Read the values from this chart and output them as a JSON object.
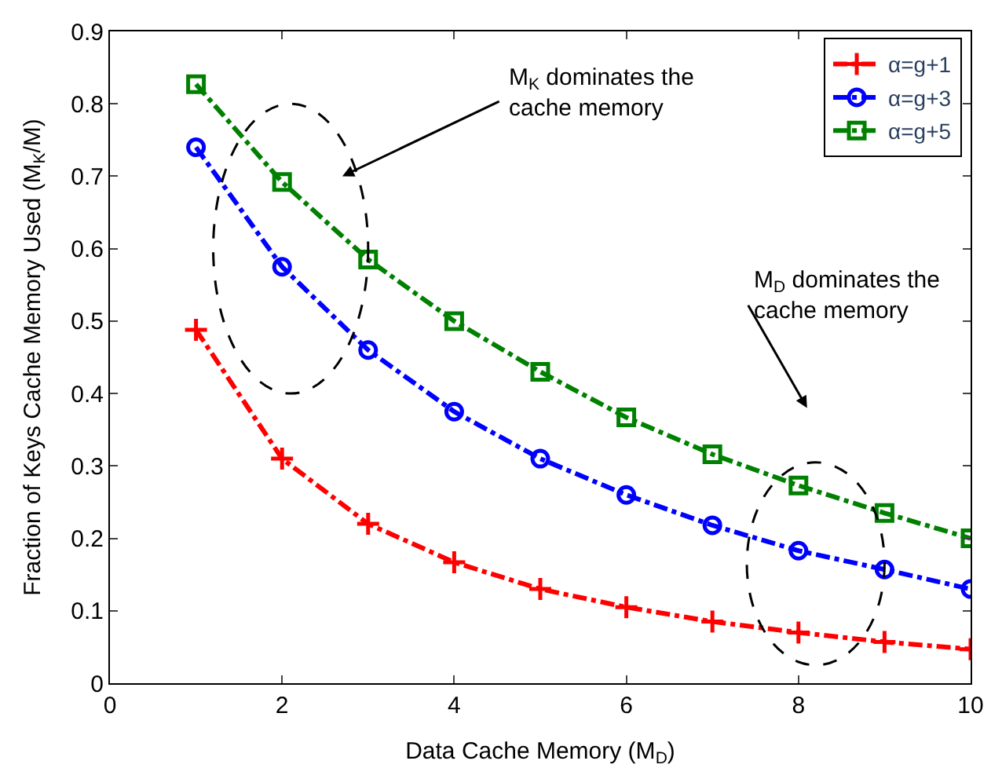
{
  "chart_data": {
    "type": "line",
    "xlabel": "Data Cache Memory (M$_{D}$)",
    "ylabel": "Fraction of Keys Cache Memory Used (M$_{K}$/M)",
    "x": [
      1,
      2,
      3,
      4,
      5,
      6,
      7,
      8,
      9,
      10
    ],
    "series": [
      {
        "name": "α=g+1",
        "color": "#ff0000",
        "marker": "cross",
        "values": [
          0.488,
          0.31,
          0.22,
          0.167,
          0.13,
          0.105,
          0.085,
          0.07,
          0.057,
          0.047
        ]
      },
      {
        "name": "α=g+3",
        "color": "#0000ff",
        "marker": "circle",
        "values": [
          0.74,
          0.575,
          0.46,
          0.375,
          0.31,
          0.26,
          0.218,
          0.183,
          0.157,
          0.13
        ]
      },
      {
        "name": "α=g+5",
        "color": "#008000",
        "marker": "square",
        "values": [
          0.827,
          0.692,
          0.585,
          0.5,
          0.43,
          0.367,
          0.316,
          0.273,
          0.235,
          0.2
        ]
      }
    ],
    "line_style": "dashed",
    "xlim": [
      0,
      10
    ],
    "xticks": [
      0,
      2,
      4,
      6,
      8,
      10
    ],
    "ylim": [
      0,
      0.9
    ],
    "yticks": [
      0,
      0.1,
      0.2,
      0.3,
      0.4,
      0.5,
      0.6,
      0.7,
      0.8,
      0.9
    ],
    "legend": "top right",
    "annotations": [
      "M$_{K}$ dominates the cache memory",
      "M$_{D}$ dominates the cache memory"
    ]
  }
}
